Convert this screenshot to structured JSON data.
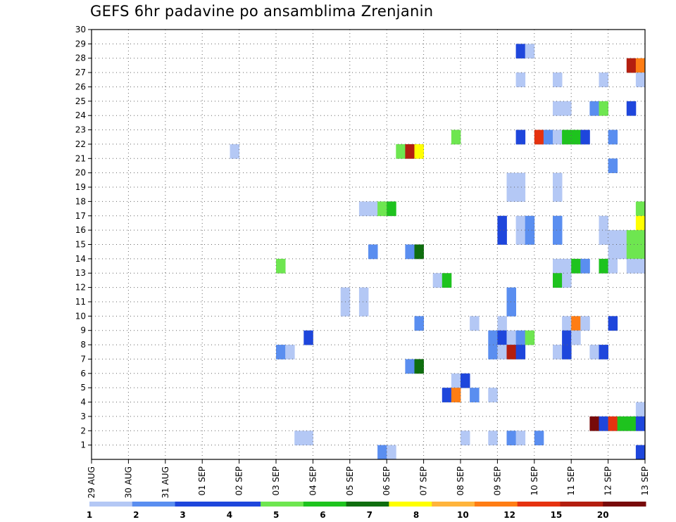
{
  "title": "GEFS 6hr padavine po ansamblima Zrenjanin",
  "chart_data": {
    "type": "heatmap",
    "title": "GEFS 6hr padavine po ansamblima Zrenjanin",
    "x_ticks": [
      "29 AUG",
      "30 AUG",
      "31 AUG",
      "01 SEP",
      "02 SEP",
      "03 SEP",
      "04 SEP",
      "05 SEP",
      "06 SEP",
      "07 SEP",
      "08 SEP",
      "09 SEP",
      "10 SEP",
      "11 SEP",
      "12 SEP",
      "13 SEP"
    ],
    "y_ticks": [
      1,
      2,
      3,
      4,
      5,
      6,
      7,
      8,
      9,
      10,
      11,
      12,
      13,
      14,
      15,
      16,
      17,
      18,
      19,
      20,
      21,
      22,
      23,
      24,
      25,
      26,
      27,
      28,
      29,
      30
    ],
    "ylim": [
      0,
      30
    ],
    "x_range_steps": [
      0,
      60
    ],
    "grid": true,
    "colorbar": {
      "labels": [
        "1",
        "2",
        "3",
        "4",
        "5",
        "6",
        "7",
        "8",
        "10",
        "12",
        "15",
        "20"
      ],
      "colors": [
        "#b4c8f5",
        "#5a8ef0",
        "#1e46dc",
        "#1e46dc",
        "#6ee650",
        "#1ec31e",
        "#0f6e0f",
        "#ffff00",
        "#ffb43c",
        "#ff7d14",
        "#e6320f",
        "#b41e0f",
        "#780a0a"
      ]
    },
    "cells": [
      {
        "member": 29,
        "step": 47,
        "value": 3
      },
      {
        "member": 29,
        "step": 48,
        "value": 1
      },
      {
        "member": 28,
        "step": 59,
        "value": 15
      },
      {
        "member": 28,
        "step": 60,
        "value": 10
      },
      {
        "member": 27,
        "step": 47,
        "value": 1
      },
      {
        "member": 27,
        "step": 51,
        "value": 1
      },
      {
        "member": 27,
        "step": 56,
        "value": 1
      },
      {
        "member": 27,
        "step": 60,
        "value": 1
      },
      {
        "member": 25,
        "step": 51,
        "value": 1
      },
      {
        "member": 25,
        "step": 52,
        "value": 1
      },
      {
        "member": 25,
        "step": 55,
        "value": 2
      },
      {
        "member": 25,
        "step": 56,
        "value": 4
      },
      {
        "member": 25,
        "step": 59,
        "value": 3
      },
      {
        "member": 23,
        "step": 40,
        "value": 4
      },
      {
        "member": 23,
        "step": 47,
        "value": 3
      },
      {
        "member": 23,
        "step": 49,
        "value": 12
      },
      {
        "member": 23,
        "step": 50,
        "value": 2
      },
      {
        "member": 23,
        "step": 51,
        "value": 1
      },
      {
        "member": 23,
        "step": 52,
        "value": 5
      },
      {
        "member": 23,
        "step": 53,
        "value": 5
      },
      {
        "member": 23,
        "step": 54,
        "value": 3
      },
      {
        "member": 23,
        "step": 57,
        "value": 2
      },
      {
        "member": 22,
        "step": 16,
        "value": 1
      },
      {
        "member": 22,
        "step": 34,
        "value": 4
      },
      {
        "member": 22,
        "step": 35,
        "value": 15
      },
      {
        "member": 22,
        "step": 36,
        "value": 7
      },
      {
        "member": 21,
        "step": 57,
        "value": 2
      },
      {
        "member": 20,
        "step": 46,
        "value": 1
      },
      {
        "member": 20,
        "step": 47,
        "value": 1
      },
      {
        "member": 20,
        "step": 51,
        "value": 1
      },
      {
        "member": 19,
        "step": 46,
        "value": 1
      },
      {
        "member": 19,
        "step": 47,
        "value": 1
      },
      {
        "member": 19,
        "step": 51,
        "value": 1
      },
      {
        "member": 18,
        "step": 30,
        "value": 1
      },
      {
        "member": 18,
        "step": 31,
        "value": 1
      },
      {
        "member": 18,
        "step": 32,
        "value": 4
      },
      {
        "member": 18,
        "step": 33,
        "value": 5
      },
      {
        "member": 18,
        "step": 60,
        "value": 4
      },
      {
        "member": 17,
        "step": 45,
        "value": 3
      },
      {
        "member": 17,
        "step": 47,
        "value": 1
      },
      {
        "member": 17,
        "step": 48,
        "value": 2
      },
      {
        "member": 17,
        "step": 51,
        "value": 2
      },
      {
        "member": 17,
        "step": 56,
        "value": 1
      },
      {
        "member": 17,
        "step": 60,
        "value": 7
      },
      {
        "member": 16,
        "step": 45,
        "value": 3
      },
      {
        "member": 16,
        "step": 47,
        "value": 1
      },
      {
        "member": 16,
        "step": 48,
        "value": 2
      },
      {
        "member": 16,
        "step": 51,
        "value": 2
      },
      {
        "member": 16,
        "step": 56,
        "value": 1
      },
      {
        "member": 16,
        "step": 57,
        "value": 1
      },
      {
        "member": 16,
        "step": 58,
        "value": 1
      },
      {
        "member": 16,
        "step": 59,
        "value": 4
      },
      {
        "member": 16,
        "step": 60,
        "value": 4
      },
      {
        "member": 15,
        "step": 31,
        "value": 2
      },
      {
        "member": 15,
        "step": 35,
        "value": 2
      },
      {
        "member": 15,
        "step": 36,
        "value": 6
      },
      {
        "member": 15,
        "step": 57,
        "value": 1
      },
      {
        "member": 15,
        "step": 58,
        "value": 1
      },
      {
        "member": 15,
        "step": 59,
        "value": 4
      },
      {
        "member": 15,
        "step": 60,
        "value": 4
      },
      {
        "member": 14,
        "step": 21,
        "value": 4
      },
      {
        "member": 14,
        "step": 51,
        "value": 1
      },
      {
        "member": 14,
        "step": 52,
        "value": 1
      },
      {
        "member": 14,
        "step": 53,
        "value": 5
      },
      {
        "member": 14,
        "step": 54,
        "value": 2
      },
      {
        "member": 14,
        "step": 56,
        "value": 5
      },
      {
        "member": 14,
        "step": 57,
        "value": 1
      },
      {
        "member": 14,
        "step": 59,
        "value": 1
      },
      {
        "member": 14,
        "step": 60,
        "value": 1
      },
      {
        "member": 13,
        "step": 38,
        "value": 1
      },
      {
        "member": 13,
        "step": 39,
        "value": 5
      },
      {
        "member": 13,
        "step": 51,
        "value": 5
      },
      {
        "member": 13,
        "step": 52,
        "value": 1
      },
      {
        "member": 12,
        "step": 28,
        "value": 1
      },
      {
        "member": 12,
        "step": 30,
        "value": 1
      },
      {
        "member": 12,
        "step": 46,
        "value": 2
      },
      {
        "member": 11,
        "step": 28,
        "value": 1
      },
      {
        "member": 11,
        "step": 30,
        "value": 1
      },
      {
        "member": 11,
        "step": 46,
        "value": 2
      },
      {
        "member": 10,
        "step": 36,
        "value": 2
      },
      {
        "member": 10,
        "step": 42,
        "value": 1
      },
      {
        "member": 10,
        "step": 45,
        "value": 1
      },
      {
        "member": 10,
        "step": 52,
        "value": 1
      },
      {
        "member": 10,
        "step": 53,
        "value": 10
      },
      {
        "member": 10,
        "step": 54,
        "value": 1
      },
      {
        "member": 10,
        "step": 57,
        "value": 3
      },
      {
        "member": 9,
        "step": 24,
        "value": 3
      },
      {
        "member": 9,
        "step": 44,
        "value": 2
      },
      {
        "member": 9,
        "step": 45,
        "value": 3
      },
      {
        "member": 9,
        "step": 46,
        "value": 1
      },
      {
        "member": 9,
        "step": 47,
        "value": 2
      },
      {
        "member": 9,
        "step": 48,
        "value": 4
      },
      {
        "member": 9,
        "step": 52,
        "value": 3
      },
      {
        "member": 9,
        "step": 53,
        "value": 1
      },
      {
        "member": 8,
        "step": 21,
        "value": 2
      },
      {
        "member": 8,
        "step": 22,
        "value": 1
      },
      {
        "member": 8,
        "step": 44,
        "value": 2
      },
      {
        "member": 8,
        "step": 45,
        "value": 1
      },
      {
        "member": 8,
        "step": 46,
        "value": 15
      },
      {
        "member": 8,
        "step": 47,
        "value": 3
      },
      {
        "member": 8,
        "step": 51,
        "value": 1
      },
      {
        "member": 8,
        "step": 52,
        "value": 3
      },
      {
        "member": 8,
        "step": 55,
        "value": 1
      },
      {
        "member": 8,
        "step": 56,
        "value": 3
      },
      {
        "member": 7,
        "step": 35,
        "value": 2
      },
      {
        "member": 7,
        "step": 36,
        "value": 6
      },
      {
        "member": 6,
        "step": 40,
        "value": 1
      },
      {
        "member": 6,
        "step": 41,
        "value": 3
      },
      {
        "member": 5,
        "step": 39,
        "value": 3
      },
      {
        "member": 5,
        "step": 40,
        "value": 10
      },
      {
        "member": 5,
        "step": 42,
        "value": 2
      },
      {
        "member": 5,
        "step": 44,
        "value": 1
      },
      {
        "member": 4,
        "step": 60,
        "value": 1
      },
      {
        "member": 3,
        "step": 55,
        "value": 20
      },
      {
        "member": 3,
        "step": 56,
        "value": 3
      },
      {
        "member": 3,
        "step": 57,
        "value": 12
      },
      {
        "member": 3,
        "step": 58,
        "value": 5
      },
      {
        "member": 3,
        "step": 59,
        "value": 5
      },
      {
        "member": 3,
        "step": 60,
        "value": 3
      },
      {
        "member": 2,
        "step": 23,
        "value": 1
      },
      {
        "member": 2,
        "step": 24,
        "value": 1
      },
      {
        "member": 2,
        "step": 41,
        "value": 1
      },
      {
        "member": 2,
        "step": 44,
        "value": 1
      },
      {
        "member": 2,
        "step": 46,
        "value": 2
      },
      {
        "member": 2,
        "step": 47,
        "value": 1
      },
      {
        "member": 2,
        "step": 49,
        "value": 2
      },
      {
        "member": 1,
        "step": 32,
        "value": 2
      },
      {
        "member": 1,
        "step": 33,
        "value": 1
      },
      {
        "member": 1,
        "step": 60,
        "value": 3
      }
    ]
  }
}
